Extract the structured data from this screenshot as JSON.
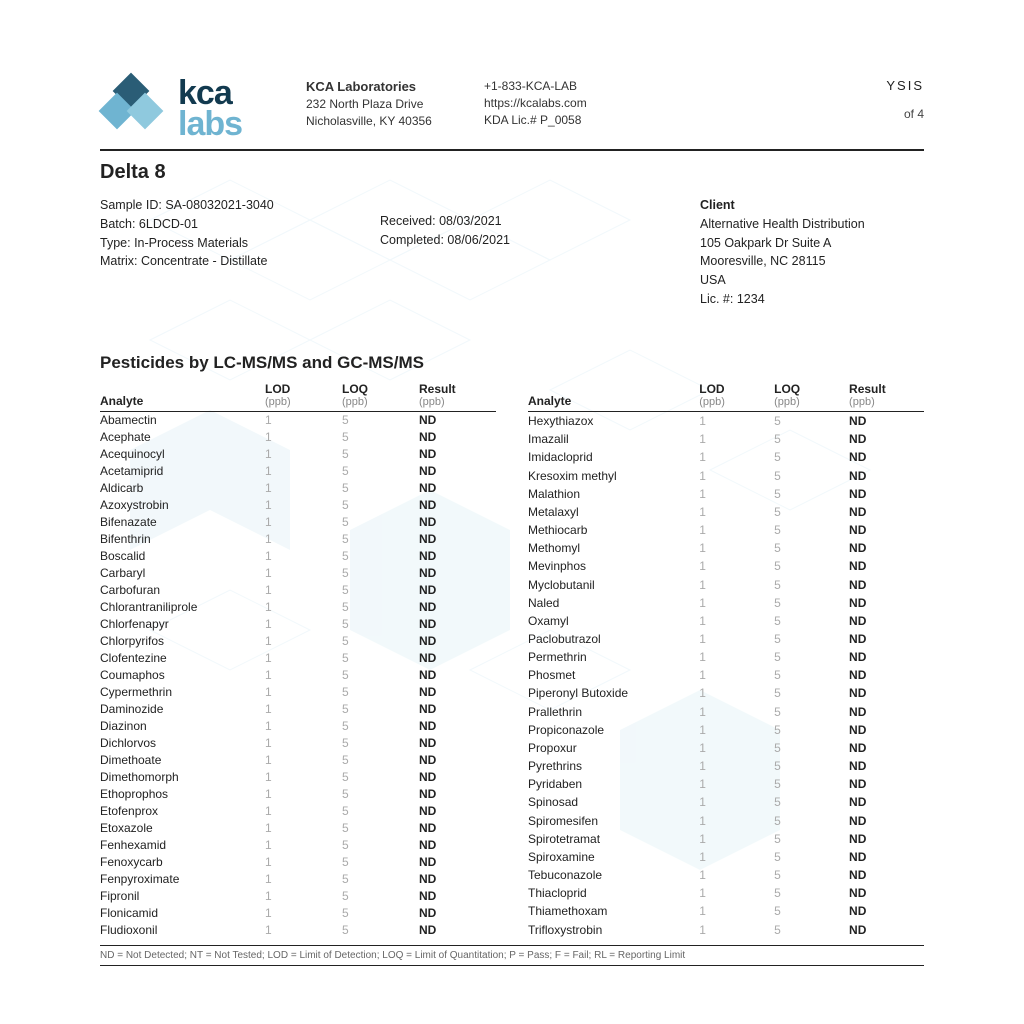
{
  "header": {
    "brand_kca": "kca",
    "brand_labs": "labs",
    "company_name": "KCA Laboratories",
    "company_addr1": "232 North Plaza Drive",
    "company_addr2": "Nicholasville, KY 40356",
    "phone": "+1-833-KCA-LAB",
    "url": "https://kcalabs.com",
    "license": "KDA Lic.# P_0058",
    "top_right_an": "YSIS",
    "top_right_page": "of 4"
  },
  "title": "Delta 8",
  "meta": {
    "sample_id_label": "Sample ID:",
    "sample_id": "SA-08032021-3040",
    "batch_label": "Batch:",
    "batch": "6LDCD-01",
    "type_label": "Type:",
    "type": "In-Process Materials",
    "matrix_label": "Matrix:",
    "matrix": "Concentrate - Distillate",
    "received_label": "Received:",
    "received": "08/03/2021",
    "completed_label": "Completed:",
    "completed": "08/06/2021",
    "client_header": "Client",
    "client_name": "Alternative Health Distribution",
    "client_addr1": "105 Oakpark Dr Suite A",
    "client_addr2": "Mooresville, NC 28115",
    "client_country": "USA",
    "client_lic_label": "Lic. #:",
    "client_lic": "1234"
  },
  "section_title": "Pesticides by LC-MS/MS and GC-MS/MS",
  "table": {
    "headers": {
      "analyte": "Analyte",
      "lod": "LOD",
      "lod_unit": "(ppb)",
      "loq": "LOQ",
      "loq_unit": "(ppb)",
      "result": "Result",
      "result_unit": "(ppb)"
    },
    "left_rows": [
      {
        "a": "Abamectin",
        "lod": "1",
        "loq": "5",
        "r": "ND"
      },
      {
        "a": "Acephate",
        "lod": "1",
        "loq": "5",
        "r": "ND"
      },
      {
        "a": "Acequinocyl",
        "lod": "1",
        "loq": "5",
        "r": "ND"
      },
      {
        "a": "Acetamiprid",
        "lod": "1",
        "loq": "5",
        "r": "ND"
      },
      {
        "a": "Aldicarb",
        "lod": "1",
        "loq": "5",
        "r": "ND"
      },
      {
        "a": "Azoxystrobin",
        "lod": "1",
        "loq": "5",
        "r": "ND"
      },
      {
        "a": "Bifenazate",
        "lod": "1",
        "loq": "5",
        "r": "ND"
      },
      {
        "a": "Bifenthrin",
        "lod": "1",
        "loq": "5",
        "r": "ND"
      },
      {
        "a": "Boscalid",
        "lod": "1",
        "loq": "5",
        "r": "ND"
      },
      {
        "a": "Carbaryl",
        "lod": "1",
        "loq": "5",
        "r": "ND"
      },
      {
        "a": "Carbofuran",
        "lod": "1",
        "loq": "5",
        "r": "ND"
      },
      {
        "a": "Chlorantraniliprole",
        "lod": "1",
        "loq": "5",
        "r": "ND"
      },
      {
        "a": "Chlorfenapyr",
        "lod": "1",
        "loq": "5",
        "r": "ND"
      },
      {
        "a": "Chlorpyrifos",
        "lod": "1",
        "loq": "5",
        "r": "ND"
      },
      {
        "a": "Clofentezine",
        "lod": "1",
        "loq": "5",
        "r": "ND"
      },
      {
        "a": "Coumaphos",
        "lod": "1",
        "loq": "5",
        "r": "ND"
      },
      {
        "a": "Cypermethrin",
        "lod": "1",
        "loq": "5",
        "r": "ND"
      },
      {
        "a": "Daminozide",
        "lod": "1",
        "loq": "5",
        "r": "ND"
      },
      {
        "a": "Diazinon",
        "lod": "1",
        "loq": "5",
        "r": "ND"
      },
      {
        "a": "Dichlorvos",
        "lod": "1",
        "loq": "5",
        "r": "ND"
      },
      {
        "a": "Dimethoate",
        "lod": "1",
        "loq": "5",
        "r": "ND"
      },
      {
        "a": "Dimethomorph",
        "lod": "1",
        "loq": "5",
        "r": "ND"
      },
      {
        "a": "Ethoprophos",
        "lod": "1",
        "loq": "5",
        "r": "ND"
      },
      {
        "a": "Etofenprox",
        "lod": "1",
        "loq": "5",
        "r": "ND"
      },
      {
        "a": "Etoxazole",
        "lod": "1",
        "loq": "5",
        "r": "ND"
      },
      {
        "a": "Fenhexamid",
        "lod": "1",
        "loq": "5",
        "r": "ND"
      },
      {
        "a": "Fenoxycarb",
        "lod": "1",
        "loq": "5",
        "r": "ND"
      },
      {
        "a": "Fenpyroximate",
        "lod": "1",
        "loq": "5",
        "r": "ND"
      },
      {
        "a": "Fipronil",
        "lod": "1",
        "loq": "5",
        "r": "ND"
      },
      {
        "a": "Flonicamid",
        "lod": "1",
        "loq": "5",
        "r": "ND"
      },
      {
        "a": "Fludioxonil",
        "lod": "1",
        "loq": "5",
        "r": "ND"
      }
    ],
    "right_rows": [
      {
        "a": "Hexythiazox",
        "lod": "1",
        "loq": "5",
        "r": "ND"
      },
      {
        "a": "Imazalil",
        "lod": "1",
        "loq": "5",
        "r": "ND"
      },
      {
        "a": "Imidacloprid",
        "lod": "1",
        "loq": "5",
        "r": "ND"
      },
      {
        "a": "Kresoxim methyl",
        "lod": "1",
        "loq": "5",
        "r": "ND"
      },
      {
        "a": "Malathion",
        "lod": "1",
        "loq": "5",
        "r": "ND"
      },
      {
        "a": "Metalaxyl",
        "lod": "1",
        "loq": "5",
        "r": "ND"
      },
      {
        "a": "Methiocarb",
        "lod": "1",
        "loq": "5",
        "r": "ND"
      },
      {
        "a": "Methomyl",
        "lod": "1",
        "loq": "5",
        "r": "ND"
      },
      {
        "a": "Mevinphos",
        "lod": "1",
        "loq": "5",
        "r": "ND"
      },
      {
        "a": "Myclobutanil",
        "lod": "1",
        "loq": "5",
        "r": "ND"
      },
      {
        "a": "Naled",
        "lod": "1",
        "loq": "5",
        "r": "ND"
      },
      {
        "a": "Oxamyl",
        "lod": "1",
        "loq": "5",
        "r": "ND"
      },
      {
        "a": "Paclobutrazol",
        "lod": "1",
        "loq": "5",
        "r": "ND"
      },
      {
        "a": "Permethrin",
        "lod": "1",
        "loq": "5",
        "r": "ND"
      },
      {
        "a": "Phosmet",
        "lod": "1",
        "loq": "5",
        "r": "ND"
      },
      {
        "a": "Piperonyl Butoxide",
        "lod": "1",
        "loq": "5",
        "r": "ND"
      },
      {
        "a": "Prallethrin",
        "lod": "1",
        "loq": "5",
        "r": "ND"
      },
      {
        "a": "Propiconazole",
        "lod": "1",
        "loq": "5",
        "r": "ND"
      },
      {
        "a": "Propoxur",
        "lod": "1",
        "loq": "5",
        "r": "ND"
      },
      {
        "a": "Pyrethrins",
        "lod": "1",
        "loq": "5",
        "r": "ND"
      },
      {
        "a": "Pyridaben",
        "lod": "1",
        "loq": "5",
        "r": "ND"
      },
      {
        "a": "Spinosad",
        "lod": "1",
        "loq": "5",
        "r": "ND"
      },
      {
        "a": "Spiromesifen",
        "lod": "1",
        "loq": "5",
        "r": "ND"
      },
      {
        "a": "Spirotetramat",
        "lod": "1",
        "loq": "5",
        "r": "ND"
      },
      {
        "a": "Spiroxamine",
        "lod": "1",
        "loq": "5",
        "r": "ND"
      },
      {
        "a": "Tebuconazole",
        "lod": "1",
        "loq": "5",
        "r": "ND"
      },
      {
        "a": "Thiacloprid",
        "lod": "1",
        "loq": "5",
        "r": "ND"
      },
      {
        "a": "Thiamethoxam",
        "lod": "1",
        "loq": "5",
        "r": "ND"
      },
      {
        "a": "Trifloxystrobin",
        "lod": "1",
        "loq": "5",
        "r": "ND"
      }
    ]
  },
  "legend": "ND = Not Detected; NT = Not Tested; LOD = Limit of Detection; LOQ = Limit of Quantitation; P = Pass; F = Fail; RL = Reporting Limit",
  "colors": {
    "brand_dark": "#123a4f",
    "brand_light": "#6fb4d1",
    "text": "#222222",
    "muted": "#aaaaaa",
    "bg_pattern": "#d8ecf4"
  }
}
